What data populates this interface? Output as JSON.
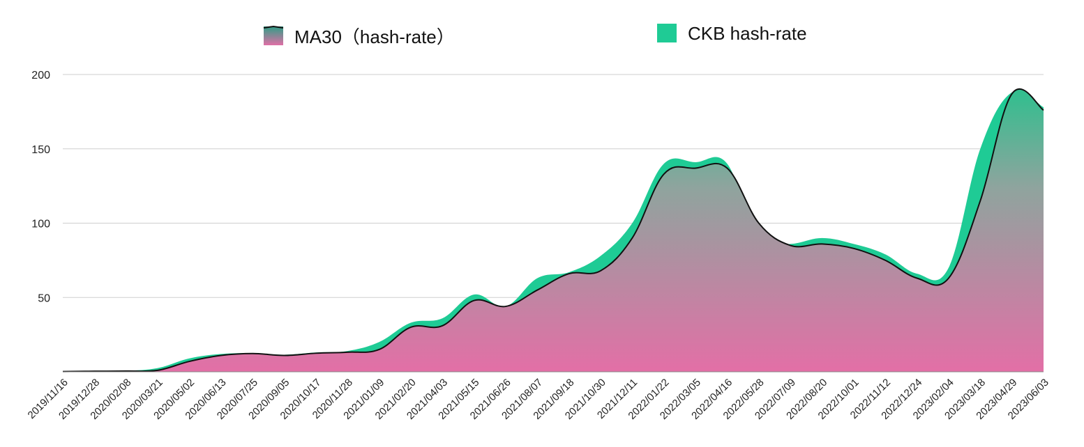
{
  "chart_data": {
    "type": "area",
    "title": "",
    "xlabel": "",
    "ylabel": "",
    "ylim": [
      0,
      200
    ],
    "yticks": [
      50,
      100,
      150,
      200
    ],
    "grid": true,
    "legend_position": "top",
    "x": [
      "2019/11/16",
      "2019/12/28",
      "2020/02/08",
      "2020/03/21",
      "2020/05/02",
      "2020/06/13",
      "2020/07/25",
      "2020/09/05",
      "2020/10/17",
      "2020/11/28",
      "2021/01/09",
      "2021/02/20",
      "2021/04/03",
      "2021/05/15",
      "2021/06/26",
      "2021/08/07",
      "2021/09/18",
      "2021/10/30",
      "2021/12/11",
      "2022/01/22",
      "2022/03/05",
      "2022/04/16",
      "2022/05/28",
      "2022/07/09",
      "2022/08/20",
      "2022/10/01",
      "2022/11/12",
      "2022/12/24",
      "2023/02/04",
      "2023/03/18",
      "2023/04/29",
      "2023/06/03"
    ],
    "series": [
      {
        "name": "CKB hash-rate",
        "color": "#1fcb95",
        "values": [
          0.3,
          0.5,
          0.7,
          2.5,
          9,
          12,
          12.5,
          11.5,
          13,
          14,
          20,
          33,
          36,
          52,
          44,
          63,
          67,
          78,
          100,
          140,
          141,
          140,
          88,
          86,
          90,
          86,
          79,
          66,
          70,
          150,
          188,
          178
        ]
      },
      {
        "name": "MA30（hash-rate）",
        "colors": [
          "#2f9e86",
          "#e06fa6"
        ],
        "values": [
          0.2,
          0.4,
          0.5,
          1.0,
          7,
          11,
          12.3,
          11.0,
          12.5,
          13.2,
          15,
          30,
          31,
          48,
          44,
          55,
          66,
          68,
          90,
          133,
          137,
          137,
          100,
          85,
          86,
          83,
          75,
          63,
          63,
          115,
          187,
          176
        ]
      }
    ]
  }
}
